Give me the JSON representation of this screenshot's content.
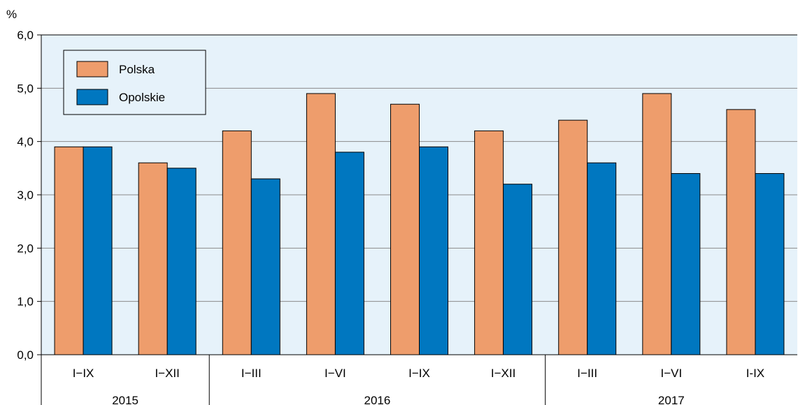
{
  "chart_data": {
    "type": "bar",
    "ylabel": "%",
    "ylim": [
      0,
      6
    ],
    "yticks": [
      "0,0",
      "1,0",
      "2,0",
      "3,0",
      "4,0",
      "5,0",
      "6,0"
    ],
    "grid": true,
    "legend_position": "top-left",
    "categories": [
      "I−IX",
      "I−XII",
      "I−III",
      "I−VI",
      "I−IX",
      "I−XII",
      "I−III",
      "I−VI",
      "I-IX"
    ],
    "groups": [
      {
        "label": "2015",
        "count": 2
      },
      {
        "label": "2016",
        "count": 4
      },
      {
        "label": "2017",
        "count": 3
      }
    ],
    "series": [
      {
        "name": "Polska",
        "color": "#ee9d6c",
        "values": [
          3.9,
          3.6,
          4.2,
          4.9,
          4.7,
          4.2,
          4.4,
          4.9,
          4.6
        ]
      },
      {
        "name": "Opolskie",
        "color": "#0077c0",
        "values": [
          3.9,
          3.5,
          3.3,
          3.8,
          3.9,
          3.2,
          3.6,
          3.4,
          3.4
        ]
      }
    ],
    "background_color": "#e6f2fa"
  }
}
